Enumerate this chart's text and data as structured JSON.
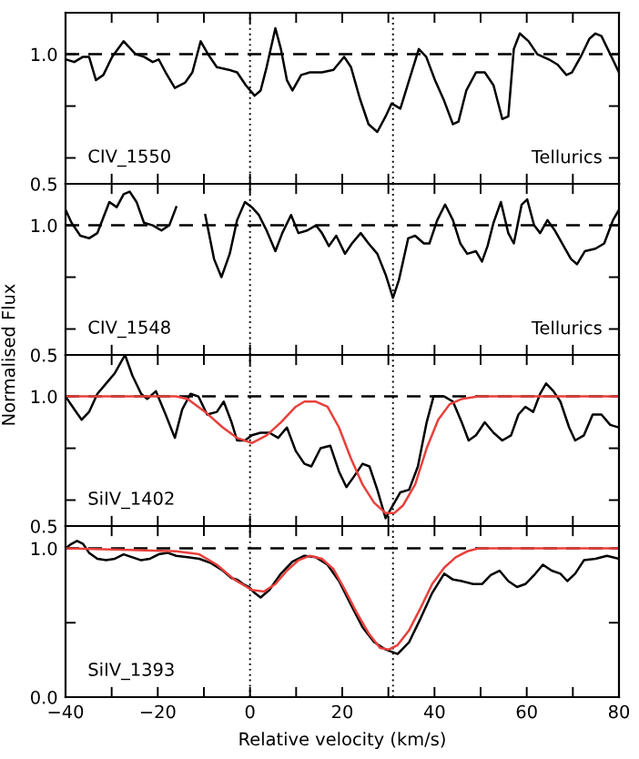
{
  "chart_data": [
    {
      "type": "line",
      "tick_labels": "y",
      "xlim": [
        -40,
        80
      ],
      "ylim": [
        0.5,
        1.16
      ],
      "xticks": [
        {
          "value": -40,
          "label": null
        },
        {
          "value": -30,
          "label": null
        },
        {
          "value": -20,
          "label": null
        },
        {
          "value": -10,
          "label": null
        },
        {
          "value": 0,
          "label": null
        },
        {
          "value": 10,
          "label": null
        },
        {
          "value": 20,
          "label": null
        },
        {
          "value": 30,
          "label": null
        },
        {
          "value": 40,
          "label": null
        },
        {
          "value": 50,
          "label": null
        },
        {
          "value": 60,
          "label": null
        },
        {
          "value": 70,
          "label": null
        },
        {
          "value": 80,
          "label": null
        }
      ],
      "yticks": [
        {
          "value": 0.5,
          "label": "0.5"
        },
        {
          "value": 0.6,
          "label": null
        },
        {
          "value": 0.8,
          "label": null
        },
        {
          "value": 1.0,
          "label": "1.0"
        }
      ],
      "ref_lines": [
        {
          "axis": "x",
          "value": 0,
          "line_style": "dotted"
        },
        {
          "axis": "x",
          "value": 31,
          "line_style": "dotted"
        },
        {
          "axis": "y",
          "value": 1.0,
          "line_style": "dashed"
        }
      ],
      "annotations": [
        "CIV_1550",
        "Tellurics"
      ],
      "series": [
        {
          "color": "#000000",
          "x": [
            -40,
            -38.1,
            -36.2,
            -34.9,
            -33.4,
            -31.8,
            -29.9,
            -27.4,
            -24.8,
            -23.0,
            -21.1,
            -19.8,
            -18.3,
            -16.3,
            -14.1,
            -12.5,
            -10.7,
            -9.1,
            -7.2,
            -4.6,
            -2.8,
            -0.9,
            1.0,
            2.3,
            3.6,
            5.5,
            6.7,
            8.0,
            9.2,
            11.1,
            13.0,
            15.6,
            18.1,
            20.4,
            21.9,
            23.8,
            25.7,
            27.6,
            29.4,
            30.7,
            32.6,
            34.5,
            36.6,
            38.2,
            40.1,
            42.1,
            44.0,
            45.2,
            46.9,
            49.0,
            50.9,
            52.8,
            54.7,
            56.0,
            57.2,
            58.5,
            60.4,
            62.3,
            64.8,
            66.7,
            68.6,
            69.8,
            71.7,
            73.6,
            74.9,
            76.2,
            78.1,
            80.0
          ],
          "values": [
            0.98,
            0.97,
            0.99,
            0.99,
            0.9,
            0.92,
            0.99,
            1.05,
            1.0,
            0.99,
            0.97,
            0.98,
            0.93,
            0.87,
            0.89,
            0.93,
            1.05,
            1.0,
            0.95,
            0.94,
            0.93,
            0.88,
            0.84,
            0.86,
            0.95,
            1.1,
            1.02,
            0.9,
            0.86,
            0.92,
            0.93,
            0.93,
            0.94,
            0.99,
            0.95,
            0.83,
            0.73,
            0.7,
            0.76,
            0.81,
            0.79,
            0.9,
            1.02,
            0.99,
            0.9,
            0.82,
            0.73,
            0.74,
            0.86,
            0.93,
            0.93,
            0.88,
            0.75,
            0.76,
            1.02,
            1.08,
            1.05,
            1.0,
            0.98,
            0.96,
            0.92,
            0.93,
            0.99,
            1.06,
            1.08,
            1.07,
            1.0,
            0.93
          ]
        }
      ]
    },
    {
      "type": "line",
      "tick_labels": "y",
      "xlim": [
        -40,
        80
      ],
      "ylim": [
        0.5,
        1.16
      ],
      "ylabel": "Normalised Flux",
      "xticks": [
        {
          "value": -40,
          "label": null
        },
        {
          "value": -30,
          "label": null
        },
        {
          "value": -20,
          "label": null
        },
        {
          "value": -10,
          "label": null
        },
        {
          "value": 0,
          "label": null
        },
        {
          "value": 10,
          "label": null
        },
        {
          "value": 20,
          "label": null
        },
        {
          "value": 30,
          "label": null
        },
        {
          "value": 40,
          "label": null
        },
        {
          "value": 50,
          "label": null
        },
        {
          "value": 60,
          "label": null
        },
        {
          "value": 70,
          "label": null
        },
        {
          "value": 80,
          "label": null
        }
      ],
      "yticks": [
        {
          "value": 0.5,
          "label": "0.5"
        },
        {
          "value": 0.6,
          "label": null
        },
        {
          "value": 0.8,
          "label": null
        },
        {
          "value": 1.0,
          "label": "1.0"
        }
      ],
      "ref_lines": [
        {
          "axis": "x",
          "value": 0,
          "line_style": "dotted"
        },
        {
          "axis": "x",
          "value": 31,
          "line_style": "dotted"
        },
        {
          "axis": "y",
          "value": 1.0,
          "line_style": "dashed"
        }
      ],
      "annotations": [
        "CIV_1548",
        "Tellurics"
      ],
      "series": [
        {
          "color": "#000000",
          "x": [
            -40,
            -38.7,
            -36.8,
            -34.9,
            -33.1,
            -31.8,
            -30.5,
            -28.9,
            -27.4,
            -26.1,
            -24.6,
            -23.0,
            -21.1,
            -19.2,
            -17.5,
            -16.0,
            -14.4,
            -10.7,
            -9.7,
            -7.8,
            -6.2,
            -4.4,
            -2.8,
            -1.1,
            0.4,
            1.9,
            3.6,
            5.5,
            7.0,
            8.9,
            10.5,
            12.4,
            14.3,
            15.6,
            17.1,
            18.7,
            20.6,
            22.1,
            24.0,
            25.7,
            27.6,
            29.4,
            31.0,
            32.3,
            34.3,
            35.8,
            37.7,
            38.9,
            40.6,
            42.3,
            44.0,
            45.6,
            47.1,
            49.0,
            50.3,
            51.5,
            52.8,
            54.4,
            56.0,
            57.2,
            58.9,
            60.1,
            61.6,
            62.9,
            64.5,
            66.1,
            68.0,
            69.6,
            70.9,
            72.6,
            74.9,
            76.8,
            78.7,
            80
          ],
          "values": [
            1.06,
            1.01,
            0.96,
            0.95,
            0.97,
            1.03,
            1.09,
            1.07,
            1.12,
            1.13,
            1.09,
            1.01,
            1.0,
            0.98,
            1.0,
            1.07,
            null,
            null,
            1.04,
            0.87,
            0.8,
            0.89,
            1.02,
            1.09,
            1.07,
            1.04,
            0.98,
            0.9,
            0.97,
            1.04,
            0.97,
            0.98,
            1.0,
            0.97,
            0.92,
            0.96,
            0.89,
            0.93,
            0.97,
            0.93,
            0.89,
            0.81,
            0.72,
            0.79,
            0.95,
            0.96,
            0.93,
            0.93,
            1.02,
            1.08,
            1.02,
            0.93,
            0.89,
            0.9,
            0.86,
            0.92,
            1.01,
            1.09,
            0.97,
            0.93,
            1.08,
            1.1,
            1.0,
            0.97,
            1.02,
            0.98,
            0.92,
            0.87,
            0.85,
            0.9,
            0.91,
            0.93,
            1.02,
            1.06
          ]
        }
      ]
    },
    {
      "type": "line",
      "tick_labels": "y",
      "xlim": [
        -40,
        80
      ],
      "ylim": [
        0.5,
        1.16
      ],
      "xticks": [
        {
          "value": -40,
          "label": null
        },
        {
          "value": -30,
          "label": null
        },
        {
          "value": -20,
          "label": null
        },
        {
          "value": -10,
          "label": null
        },
        {
          "value": 0,
          "label": null
        },
        {
          "value": 10,
          "label": null
        },
        {
          "value": 20,
          "label": null
        },
        {
          "value": 30,
          "label": null
        },
        {
          "value": 40,
          "label": null
        },
        {
          "value": 50,
          "label": null
        },
        {
          "value": 60,
          "label": null
        },
        {
          "value": 70,
          "label": null
        },
        {
          "value": 80,
          "label": null
        }
      ],
      "yticks": [
        {
          "value": 0.5,
          "label": "0.5"
        },
        {
          "value": 0.6,
          "label": null
        },
        {
          "value": 0.8,
          "label": null
        },
        {
          "value": 1.0,
          "label": "1.0"
        }
      ],
      "ref_lines": [
        {
          "axis": "x",
          "value": 0,
          "line_style": "dotted"
        },
        {
          "axis": "x",
          "value": 31,
          "line_style": "dotted"
        },
        {
          "axis": "y",
          "value": 1.0,
          "line_style": "dashed"
        }
      ],
      "annotations": [
        "SiIV_1402"
      ],
      "series": [
        {
          "color": "#000000",
          "x": [
            -40,
            -38.1,
            -36.5,
            -34.9,
            -33.1,
            -31.2,
            -29.3,
            -27.1,
            -25.5,
            -23.6,
            -22.3,
            -20.4,
            -18.3,
            -16.3,
            -14.7,
            -12.9,
            -11.2,
            -9.3,
            -7.2,
            -5.7,
            -4.0,
            -2.8,
            -1.1,
            0.4,
            2.3,
            4.2,
            6.1,
            8.0,
            9.9,
            11.8,
            13.3,
            15.3,
            17.4,
            19.3,
            20.9,
            22.5,
            24.4,
            25.9,
            27.6,
            29.4,
            31.0,
            32.6,
            34.5,
            36.4,
            38.3,
            39.8,
            42.1,
            44.0,
            45.9,
            47.4,
            49.0,
            50.9,
            52.8,
            54.7,
            56.6,
            58.2,
            59.7,
            61.4,
            62.9,
            64.2,
            65.8,
            67.3,
            69.2,
            70.5,
            72.4,
            74.3,
            76.2,
            78.1,
            80.0
          ],
          "values": [
            1.0,
            0.95,
            0.91,
            0.94,
            1.01,
            1.05,
            1.09,
            1.16,
            1.08,
            1.01,
            0.99,
            1.02,
            0.93,
            0.84,
            0.95,
            1.01,
            1.0,
            0.93,
            0.94,
            0.98,
            0.9,
            0.83,
            0.83,
            0.85,
            0.86,
            0.86,
            0.84,
            0.88,
            0.79,
            0.74,
            0.73,
            0.8,
            0.81,
            0.71,
            0.65,
            0.69,
            0.74,
            0.73,
            0.64,
            0.53,
            0.58,
            0.63,
            0.64,
            0.73,
            0.9,
            1.0,
            1.0,
            0.98,
            0.9,
            0.83,
            0.85,
            0.9,
            0.86,
            0.83,
            0.85,
            0.93,
            0.96,
            0.94,
            1.01,
            1.05,
            1.02,
            0.98,
            0.88,
            0.83,
            0.85,
            0.93,
            0.93,
            0.89,
            0.88
          ]
        },
        {
          "color": "#e8403c",
          "x": [
            -40,
            -16.0,
            -13.5,
            -9.7,
            -5.9,
            -2.8,
            0.4,
            3.6,
            6.7,
            9.9,
            11.8,
            14.3,
            16.8,
            19.3,
            21.9,
            24.4,
            26.9,
            29.4,
            31.3,
            33.2,
            35.8,
            38.3,
            40.8,
            43.3,
            45.9,
            49.6,
            80
          ],
          "values": [
            1.0,
            1.0,
            0.99,
            0.94,
            0.88,
            0.84,
            0.82,
            0.85,
            0.9,
            0.96,
            0.98,
            0.98,
            0.96,
            0.88,
            0.76,
            0.66,
            0.59,
            0.55,
            0.55,
            0.58,
            0.66,
            0.8,
            0.91,
            0.97,
            0.99,
            1.0,
            1.0
          ]
        }
      ]
    },
    {
      "type": "line",
      "xlim": [
        -40,
        80
      ],
      "ylim": [
        0.0,
        1.15
      ],
      "xlabel": "Relative velocity (km/s)",
      "xticks": [
        {
          "value": -40,
          "label": "−40"
        },
        {
          "value": -30,
          "label": null
        },
        {
          "value": -20,
          "label": "−20"
        },
        {
          "value": -10,
          "label": null
        },
        0,
        {
          "value": 10,
          "label": null
        },
        20,
        {
          "value": 30,
          "label": null
        },
        40,
        {
          "value": 50,
          "label": null
        },
        60,
        {
          "value": 70,
          "label": null
        },
        80
      ],
      "yticks": [
        {
          "value": 0.0,
          "label": "0.0"
        },
        {
          "value": 0.5,
          "label": null
        },
        {
          "value": 1.0,
          "label": "1.0"
        }
      ],
      "ref_lines": [
        {
          "axis": "x",
          "value": 0,
          "line_style": "dotted"
        },
        {
          "axis": "x",
          "value": 31,
          "line_style": "dotted"
        },
        {
          "axis": "y",
          "value": 1.0,
          "line_style": "dashed"
        }
      ],
      "annotations": [
        "SiIV_1393"
      ],
      "series": [
        {
          "color": "#000000",
          "x": [
            -40,
            -38.7,
            -37.5,
            -36.2,
            -34.9,
            -33.1,
            -31.2,
            -29.3,
            -27.4,
            -25.5,
            -23.6,
            -21.7,
            -19.8,
            -17.9,
            -16.0,
            -13.5,
            -11.0,
            -8.4,
            -5.9,
            -4.0,
            -2.8,
            -1.5,
            -0.2,
            1.0,
            2.3,
            4.2,
            6.7,
            9.2,
            11.8,
            14.3,
            16.8,
            19.3,
            21.9,
            24.4,
            26.9,
            29.4,
            32.0,
            34.5,
            37.0,
            39.5,
            42.1,
            44.0,
            45.9,
            48.4,
            50.3,
            52.2,
            54.1,
            56.0,
            57.9,
            59.7,
            61.6,
            63.5,
            65.4,
            67.3,
            68.8,
            70.5,
            72.4,
            74.9,
            77.4,
            80
          ],
          "values": [
            1.0,
            1.03,
            1.05,
            1.03,
            0.97,
            0.93,
            0.92,
            0.93,
            0.96,
            0.94,
            0.92,
            0.93,
            0.96,
            0.97,
            0.95,
            0.94,
            0.93,
            0.9,
            0.85,
            0.8,
            0.79,
            0.76,
            0.74,
            0.7,
            0.67,
            0.72,
            0.83,
            0.91,
            0.95,
            0.94,
            0.89,
            0.78,
            0.62,
            0.47,
            0.37,
            0.32,
            0.29,
            0.37,
            0.53,
            0.7,
            0.83,
            0.79,
            0.78,
            0.76,
            0.76,
            0.82,
            0.85,
            0.78,
            0.74,
            0.76,
            0.82,
            0.89,
            0.85,
            0.83,
            0.78,
            0.83,
            0.92,
            0.93,
            0.95,
            0.93
          ]
        },
        {
          "color": "#e8403c",
          "x": [
            -40,
            -26.1,
            -16.0,
            -11.0,
            -7.2,
            -3.4,
            0.4,
            3.0,
            5.5,
            8.0,
            10.5,
            13.0,
            15.6,
            18.1,
            20.6,
            23.1,
            25.7,
            28.2,
            30.1,
            32.0,
            34.5,
            37.0,
            39.5,
            42.1,
            44.6,
            47.1,
            49.6,
            80
          ],
          "values": [
            1.0,
            0.99,
            0.98,
            0.96,
            0.89,
            0.79,
            0.72,
            0.71,
            0.76,
            0.85,
            0.92,
            0.95,
            0.93,
            0.86,
            0.72,
            0.57,
            0.43,
            0.33,
            0.32,
            0.35,
            0.45,
            0.6,
            0.76,
            0.87,
            0.94,
            0.98,
            1.0,
            1.0
          ]
        }
      ]
    }
  ]
}
